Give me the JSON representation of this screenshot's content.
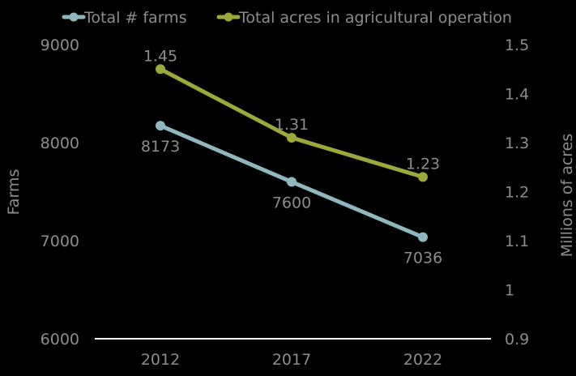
{
  "chart_data": {
    "type": "line",
    "categories": [
      "2012",
      "2017",
      "2022"
    ],
    "series": [
      {
        "name": "Total # farms",
        "axis": "left",
        "values": [
          8173,
          7600,
          7036
        ],
        "labels": [
          "8173",
          "7600",
          "7036"
        ],
        "label_position": "below",
        "color": "#8fb7be"
      },
      {
        "name": "Total acres in agricultural operation",
        "axis": "right",
        "values": [
          1.45,
          1.31,
          1.23
        ],
        "labels": [
          "1.45",
          "1.31",
          "1.23"
        ],
        "label_position": "above",
        "color": "#9aa83c"
      }
    ],
    "y_left": {
      "label": "Farms",
      "ylim": [
        6000,
        9000
      ],
      "ticks": [
        "6000",
        "7000",
        "8000",
        "9000"
      ]
    },
    "y_right": {
      "label": "Millions of acres",
      "ylim": [
        0.9,
        1.5
      ],
      "ticks": [
        "0.9",
        "1",
        "1.1",
        "1.2",
        "1.3",
        "1.4",
        "1.5"
      ]
    },
    "legend_position": "top",
    "grid": false,
    "background": "#000000",
    "axis_color": "#ffffff",
    "text_color": "#8c8c8c"
  }
}
